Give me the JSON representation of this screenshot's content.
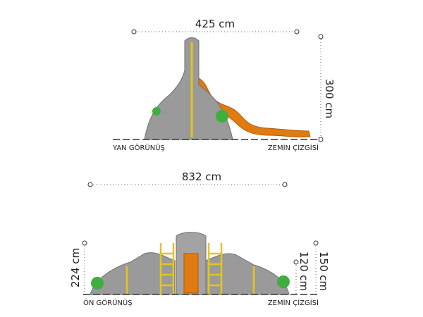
{
  "side_view": {
    "width_label": "425 cm",
    "height_label": "300 cm",
    "view_label": "YAN GÖRÜNÜŞ",
    "ground_label": "ZEMİN ÇİZGİSİ"
  },
  "front_view": {
    "width_label": "832 cm",
    "height_label": "224 cm",
    "inner_height_label": "120 cm",
    "outer_height_label": "150 cm",
    "view_label": "ÖN GÖRÜNÜŞ",
    "ground_label": "ZEMİN ÇİZGİSİ"
  }
}
